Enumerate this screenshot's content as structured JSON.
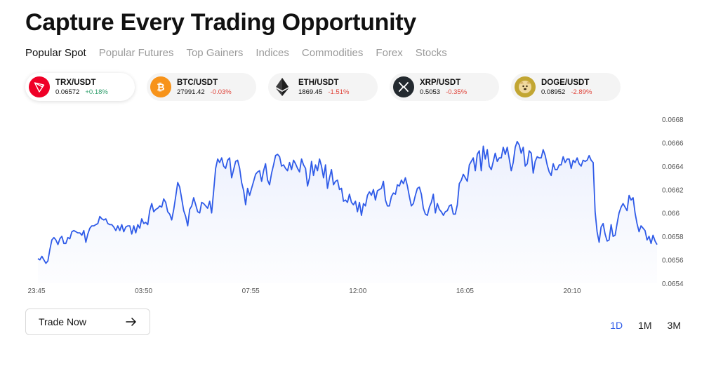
{
  "title": "Capture Every Trading Opportunity",
  "tabs": [
    {
      "label": "Popular Spot",
      "active": true
    },
    {
      "label": "Popular Futures",
      "active": false
    },
    {
      "label": "Top Gainers",
      "active": false
    },
    {
      "label": "Indices",
      "active": false
    },
    {
      "label": "Commodities",
      "active": false
    },
    {
      "label": "Forex",
      "active": false
    },
    {
      "label": "Stocks",
      "active": false
    }
  ],
  "tickers": [
    {
      "symbol": "TRX/USDT",
      "price": "0.06572",
      "change": "+0.18%",
      "direction": "up",
      "icon": "tron-icon",
      "color": "#ef0027"
    },
    {
      "symbol": "BTC/USDT",
      "price": "27991.42",
      "change": "-0.03%",
      "direction": "down",
      "icon": "bitcoin-icon",
      "color": "#f7931a"
    },
    {
      "symbol": "ETH/USDT",
      "price": "1869.45",
      "change": "-1.51%",
      "direction": "down",
      "icon": "ethereum-icon",
      "color": "#3c3c3d"
    },
    {
      "symbol": "XRP/USDT",
      "price": "0.5053",
      "change": "-0.35%",
      "direction": "down",
      "icon": "xrp-icon",
      "color": "#23292f"
    },
    {
      "symbol": "DOGE/USDT",
      "price": "0.08952",
      "change": "-2.89%",
      "direction": "down",
      "icon": "doge-icon",
      "color": "#c2a633"
    }
  ],
  "trade_button": {
    "label": "Trade Now"
  },
  "ranges": [
    {
      "label": "1D",
      "active": true
    },
    {
      "label": "1M",
      "active": false
    },
    {
      "label": "3M",
      "active": false
    }
  ],
  "colors": {
    "line": "#2f5be8",
    "up": "#2e9e6b",
    "down": "#e0463c",
    "active_range": "#2f5be8"
  },
  "chart_data": {
    "type": "line",
    "series": [
      {
        "values": [
          0.06561,
          0.0656,
          0.06563,
          0.0656,
          0.06557,
          0.06559,
          0.06569,
          0.06577,
          0.06579,
          0.06577,
          0.06573,
          0.06578,
          0.0658,
          0.06574,
          0.06574,
          0.06579,
          0.06578,
          0.06584,
          0.06585,
          0.06584,
          0.06583,
          0.06583,
          0.06581,
          0.06585,
          0.06575,
          0.06582,
          0.06587,
          0.06589,
          0.06589,
          0.0659,
          0.06591,
          0.06597,
          0.06595,
          0.06594,
          0.06595,
          0.06591,
          0.0659,
          0.0659,
          0.06588,
          0.06585,
          0.06589,
          0.06585,
          0.0659,
          0.06584,
          0.06588,
          0.06589,
          0.06589,
          0.06582,
          0.06589,
          0.06583,
          0.0659,
          0.06587,
          0.06595,
          0.06591,
          0.06592,
          0.0659,
          0.06602,
          0.06608,
          0.06601,
          0.06603,
          0.06604,
          0.06606,
          0.06605,
          0.06612,
          0.06609,
          0.06601,
          0.06599,
          0.06594,
          0.06603,
          0.06614,
          0.06626,
          0.06622,
          0.06612,
          0.06602,
          0.06597,
          0.06589,
          0.06603,
          0.06606,
          0.06613,
          0.06607,
          0.06601,
          0.066,
          0.06609,
          0.06608,
          0.06606,
          0.06604,
          0.0661,
          0.066,
          0.06619,
          0.06638,
          0.06646,
          0.06643,
          0.06647,
          0.0664,
          0.06638,
          0.06645,
          0.06647,
          0.0663,
          0.06637,
          0.06644,
          0.06645,
          0.06638,
          0.06626,
          0.06619,
          0.06607,
          0.06621,
          0.06615,
          0.06621,
          0.06627,
          0.06633,
          0.06635,
          0.06636,
          0.06627,
          0.06636,
          0.06642,
          0.06628,
          0.06624,
          0.06634,
          0.06641,
          0.06649,
          0.0665,
          0.06648,
          0.0664,
          0.06641,
          0.06638,
          0.06636,
          0.06643,
          0.06637,
          0.06645,
          0.06642,
          0.06638,
          0.06635,
          0.06646,
          0.06641,
          0.06638,
          0.06623,
          0.0663,
          0.06644,
          0.06632,
          0.06641,
          0.06636,
          0.06646,
          0.0664,
          0.0663,
          0.06641,
          0.06621,
          0.0663,
          0.06637,
          0.06624,
          0.06627,
          0.06628,
          0.0662,
          0.06621,
          0.0661,
          0.06611,
          0.06609,
          0.06616,
          0.06609,
          0.06607,
          0.0661,
          0.06601,
          0.06609,
          0.06598,
          0.06608,
          0.06606,
          0.06615,
          0.06618,
          0.06615,
          0.0662,
          0.06611,
          0.06619,
          0.0662,
          0.06621,
          0.06627,
          0.06611,
          0.06606,
          0.06606,
          0.06614,
          0.06617,
          0.06616,
          0.06624,
          0.06623,
          0.06628,
          0.06625,
          0.0663,
          0.06623,
          0.06614,
          0.06606,
          0.06608,
          0.06615,
          0.06621,
          0.06622,
          0.06616,
          0.06604,
          0.06599,
          0.06598,
          0.06605,
          0.06609,
          0.06616,
          0.066,
          0.06608,
          0.06603,
          0.06601,
          0.06598,
          0.06601,
          0.06602,
          0.06606,
          0.06607,
          0.06599,
          0.06599,
          0.06607,
          0.06625,
          0.06628,
          0.06633,
          0.0663,
          0.06627,
          0.06641,
          0.06644,
          0.06647,
          0.06636,
          0.0665,
          0.06653,
          0.06636,
          0.06657,
          0.06646,
          0.06654,
          0.0664,
          0.06637,
          0.06644,
          0.06651,
          0.06644,
          0.06647,
          0.06647,
          0.06656,
          0.0665,
          0.06656,
          0.06646,
          0.06636,
          0.06643,
          0.06656,
          0.06661,
          0.06658,
          0.06651,
          0.06656,
          0.0664,
          0.06642,
          0.06653,
          0.06651,
          0.06634,
          0.06644,
          0.06648,
          0.06647,
          0.06647,
          0.06654,
          0.06649,
          0.06641,
          0.06635,
          0.06632,
          0.06642,
          0.06637,
          0.06637,
          0.06641,
          0.06641,
          0.06648,
          0.06643,
          0.06646,
          0.06646,
          0.06638,
          0.06645,
          0.06643,
          0.06647,
          0.06642,
          0.0664,
          0.06645,
          0.06644,
          0.06645,
          0.06649,
          0.06645,
          0.06643,
          0.06601,
          0.06584,
          0.06575,
          0.06588,
          0.06591,
          0.06582,
          0.06576,
          0.06577,
          0.0659,
          0.0658,
          0.06581,
          0.06591,
          0.066,
          0.06605,
          0.06608,
          0.06605,
          0.06602,
          0.06615,
          0.06611,
          0.06613,
          0.066,
          0.06591,
          0.06584,
          0.06589,
          0.06587,
          0.06585,
          0.06577,
          0.0658,
          0.06574,
          0.06581,
          0.06576,
          0.06573
        ]
      }
    ],
    "x_tick_labels": [
      "23:45",
      "03:50",
      "07:55",
      "12:00",
      "16:05",
      "20:10"
    ],
    "y_tick_labels": [
      "0.0668",
      "0.0666",
      "0.0664",
      "0.0662",
      "0.066",
      "0.0658",
      "0.0656",
      "0.0654"
    ],
    "ylim": [
      0.0654,
      0.0668
    ],
    "grid": false,
    "fill": "area gradient"
  }
}
